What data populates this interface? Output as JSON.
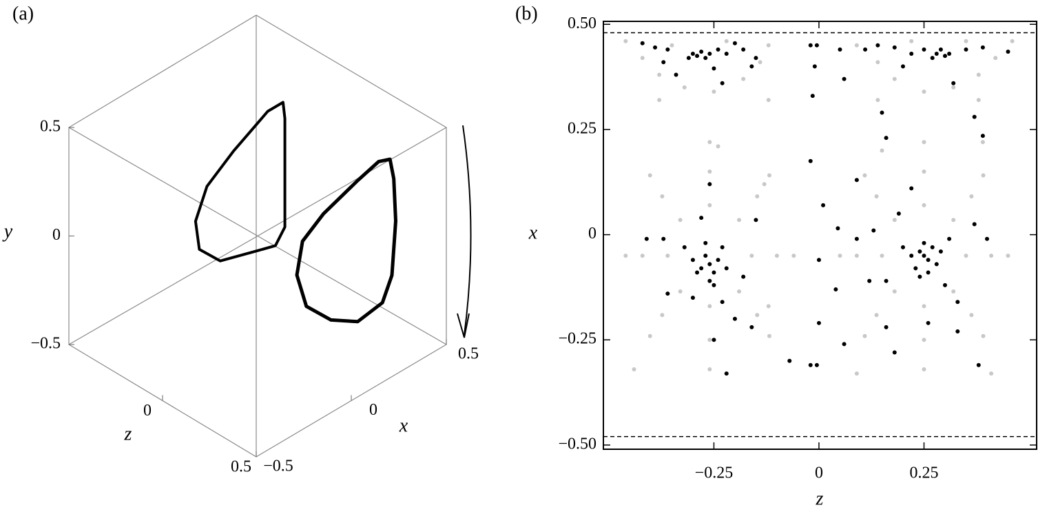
{
  "chart_data": [
    {
      "type": "line3d",
      "label": "(a)",
      "xlabel": "x",
      "ylabel": "y",
      "zlabel": "z",
      "xlim": [
        -0.5,
        0.5
      ],
      "ylim": [
        -0.5,
        0.5
      ],
      "zlim": [
        -0.5,
        0.5
      ],
      "xticks": [
        {
          "value": -0.5,
          "label": "−0.5"
        },
        0,
        0.5
      ],
      "yticks": [
        0.5,
        0,
        {
          "value": -0.5,
          "label": "−0.5"
        }
      ],
      "zticks": [
        0,
        0.5
      ],
      "series": [
        {
          "color": "#000000",
          "z": [
            -0.25,
            -0.25,
            -0.25,
            -0.25,
            -0.25,
            -0.25,
            -0.25,
            -0.25,
            -0.25,
            -0.25,
            -0.25
          ],
          "x": [
            0.38,
            0.39,
            0.39,
            0.34,
            0.23,
            0.05,
            -0.06,
            -0.08,
            -0.02,
            0.12,
            0.3
          ],
          "y": [
            0.29,
            0.21,
            -0.29,
            -0.35,
            -0.32,
            -0.27,
            -0.16,
            -0.02,
            0.11,
            0.2,
            0.29
          ]
        },
        {
          "color": "#000000",
          "z": [
            0.25,
            0.25,
            0.25,
            0.25,
            0.25,
            0.25,
            0.25,
            0.25,
            0.25,
            0.25,
            0.25,
            0.25,
            0.25
          ],
          "x": [
            0.45,
            0.47,
            0.48,
            0.46,
            0.41,
            0.28,
            0.14,
            0.01,
            -0.04,
            -0.01,
            0.1,
            0.28,
            0.39
          ],
          "y": [
            0.25,
            0.15,
            -0.05,
            -0.29,
            -0.39,
            -0.41,
            -0.33,
            -0.2,
            -0.03,
            0.11,
            0.18,
            0.24,
            0.27
          ]
        }
      ]
    },
    {
      "type": "scatter",
      "label": "(b)",
      "xlabel": "z",
      "ylabel": "x",
      "xlim": [
        -0.513,
        0.518
      ],
      "ylim": [
        -0.51,
        0.507
      ],
      "xticks": [
        {
          "value": -0.25,
          "label": "−0.25"
        },
        0,
        0.25
      ],
      "yticks": [
        {
          "value": 0.5,
          "label": "0.50"
        },
        0.25,
        0,
        {
          "value": -0.25,
          "label": "−0.25"
        },
        {
          "value": -0.5,
          "label": "−0.50"
        }
      ],
      "hlines": [
        0.48,
        -0.48
      ],
      "series": [
        {
          "color": "#c8c8c8",
          "x": [
            -0.16,
            -0.19,
            -0.26,
            -0.33,
            -0.36,
            -0.33,
            -0.26,
            -0.19,
            -0.1,
            -0.147,
            -0.26,
            -0.373,
            -0.42,
            -0.373,
            -0.26,
            -0.147,
            -0.06,
            -0.118,
            -0.26,
            -0.402,
            -0.46,
            -0.402,
            -0.26,
            -0.118,
            0.35,
            0.32,
            0.25,
            0.18,
            0.15,
            0.18,
            0.25,
            0.32,
            0.41,
            0.363,
            0.25,
            0.137,
            0.09,
            0.137,
            0.25,
            0.363,
            0.45,
            0.391,
            0.25,
            0.109,
            0.05,
            0.109,
            0.25,
            0.391,
            -0.46,
            -0.42,
            -0.38,
            -0.32,
            -0.25,
            -0.18,
            -0.14,
            -0.12,
            -0.35,
            -0.22,
            -0.38,
            -0.12,
            0.46,
            0.42,
            0.38,
            0.32,
            0.25,
            0.18,
            0.14,
            0.09,
            0.35,
            0.22,
            0.38,
            0.14,
            -0.12,
            -0.13,
            0.15,
            0.09,
            -0.24,
            0.39,
            -0.44,
            0.41
          ],
          "y": [
            -0.05,
            0.035,
            0.07,
            0.035,
            -0.05,
            -0.135,
            -0.17,
            -0.135,
            -0.05,
            0.091,
            0.15,
            0.091,
            -0.05,
            -0.191,
            -0.25,
            -0.191,
            -0.05,
            0.141,
            0.22,
            0.141,
            -0.05,
            -0.241,
            -0.32,
            -0.241,
            -0.05,
            0.035,
            0.07,
            0.035,
            -0.05,
            -0.135,
            -0.17,
            -0.135,
            -0.05,
            0.091,
            0.15,
            0.091,
            -0.05,
            -0.191,
            -0.25,
            -0.191,
            -0.05,
            0.141,
            0.22,
            0.141,
            -0.05,
            -0.241,
            -0.32,
            -0.241,
            0.46,
            0.42,
            0.38,
            0.35,
            0.34,
            0.37,
            0.41,
            0.45,
            0.45,
            0.46,
            0.32,
            0.32,
            0.46,
            0.42,
            0.38,
            0.35,
            0.34,
            0.37,
            0.41,
            0.45,
            0.46,
            0.46,
            0.32,
            0.32,
            -0.17,
            0.12,
            0.2,
            -0.33,
            0.21,
            0.22,
            -0.32,
            -0.33
          ]
        },
        {
          "color": "#000000",
          "x": [
            -0.42,
            -0.39,
            -0.36,
            -0.37,
            -0.3,
            -0.29,
            -0.28,
            -0.27,
            -0.31,
            -0.26,
            -0.24,
            -0.22,
            -0.2,
            -0.18,
            -0.15,
            -0.25,
            -0.34,
            -0.23,
            -0.16,
            0.28,
            0.27,
            0.29,
            0.3,
            0.31,
            0.25,
            0.22,
            0.18,
            0.14,
            0.35,
            0.39,
            0.45,
            0.2,
            0.32,
            0.11,
            0.05,
            -0.02,
            -0.005,
            -0.01,
            -0.015,
            0.06,
            0.15,
            0.37,
            0.16,
            0.39,
            -0.02,
            0.09,
            -0.26,
            -0.27,
            -0.25,
            -0.28,
            -0.24,
            -0.26,
            -0.29,
            -0.23,
            -0.27,
            -0.3,
            -0.25,
            -0.22,
            -0.32,
            -0.28,
            -0.26,
            -0.15,
            -0.37,
            -0.41,
            -0.18,
            -0.2,
            -0.16,
            -0.23,
            -0.3,
            -0.36,
            -0.25,
            -0.22,
            0.25,
            0.24,
            0.26,
            0.23,
            0.27,
            0.25,
            0.22,
            0.28,
            0.24,
            0.26,
            0.29,
            0.2,
            0.22,
            0.19,
            0.13,
            0.09,
            0.31,
            0.37,
            0.4,
            0.16,
            0.12,
            0.3,
            0.33,
            0.16,
            0.26,
            0.33,
            0.18,
            0.38,
            0.0,
            0.04,
            0.0,
            0.06,
            -0.005,
            -0.02,
            -0.07,
            0.01,
            0.045
          ],
          "y": [
            0.455,
            0.445,
            0.44,
            0.41,
            0.43,
            0.425,
            0.435,
            0.42,
            0.42,
            0.43,
            0.44,
            0.43,
            0.455,
            0.44,
            0.42,
            0.395,
            0.38,
            0.36,
            0.4,
            0.43,
            0.42,
            0.44,
            0.425,
            0.43,
            0.44,
            0.43,
            0.445,
            0.45,
            0.44,
            0.445,
            0.435,
            0.4,
            0.36,
            0.44,
            0.44,
            0.45,
            0.45,
            0.4,
            0.33,
            0.37,
            0.29,
            0.28,
            0.23,
            0.235,
            0.175,
            0.13,
            -0.07,
            -0.05,
            -0.09,
            -0.08,
            -0.06,
            -0.11,
            -0.09,
            -0.03,
            -0.02,
            -0.06,
            -0.12,
            -0.08,
            -0.03,
            0.04,
            0.12,
            0.035,
            -0.01,
            -0.01,
            -0.1,
            -0.2,
            -0.22,
            -0.16,
            -0.15,
            -0.14,
            -0.25,
            -0.33,
            -0.05,
            -0.04,
            -0.06,
            -0.08,
            -0.03,
            -0.02,
            -0.05,
            -0.07,
            -0.1,
            -0.09,
            -0.04,
            -0.03,
            0.11,
            0.05,
            0.01,
            -0.01,
            -0.01,
            0.025,
            -0.01,
            -0.11,
            -0.11,
            -0.12,
            -0.16,
            -0.22,
            -0.21,
            -0.23,
            -0.28,
            -0.31,
            -0.06,
            -0.13,
            -0.21,
            -0.26,
            -0.31,
            -0.31,
            -0.3,
            0.07,
            0.015
          ]
        }
      ]
    }
  ]
}
